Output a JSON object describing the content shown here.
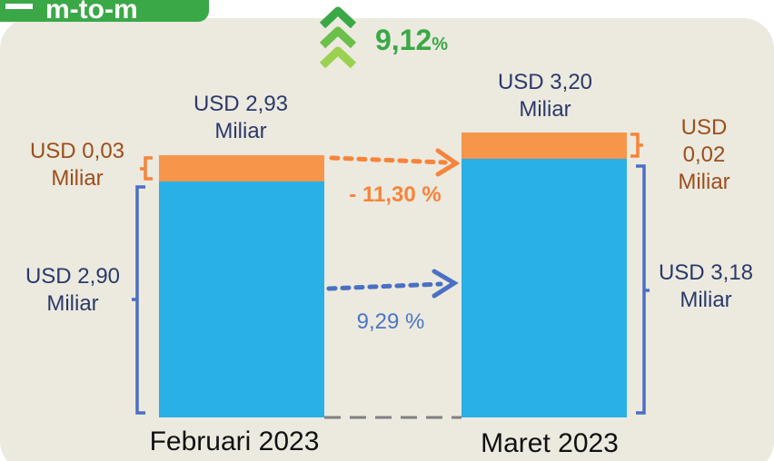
{
  "badge": "m-to-m",
  "growth": {
    "value": "9,12",
    "unit": "%"
  },
  "bars": [
    {
      "category": "Februari 2023",
      "total": "USD 2,93 Miliar",
      "top": "USD 0,03 Miliar",
      "base": "USD 2,90 Miliar"
    },
    {
      "category": "Maret 2023",
      "total": "USD 3,20 Miliar",
      "top": "USD 0,02 Miliar",
      "base": "USD 3,18 Miliar"
    }
  ],
  "changes": {
    "top": "- 11,30 %",
    "base": "9,29 %"
  }
}
